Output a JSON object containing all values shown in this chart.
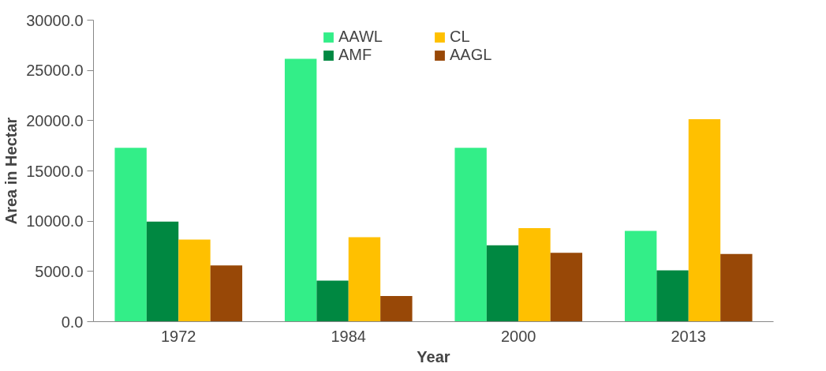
{
  "chart_data": {
    "type": "bar",
    "xlabel": "Year",
    "ylabel": "Area in Hectar",
    "categories": [
      "1972",
      "1984",
      "2000",
      "2013"
    ],
    "series": [
      {
        "name": "AAWL",
        "color": "#33ee88",
        "values": [
          17300,
          26150,
          17300,
          9040
        ]
      },
      {
        "name": "AMF",
        "color": "#008841",
        "values": [
          9950,
          4080,
          7600,
          5100
        ]
      },
      {
        "name": "CL",
        "color": "#ffc000",
        "values": [
          8170,
          8400,
          9300,
          20150
        ]
      },
      {
        "name": "AAGL",
        "color": "#984807",
        "values": [
          5600,
          2550,
          6850,
          6730
        ]
      }
    ],
    "ylim": [
      0,
      30000
    ],
    "yticks": [
      {
        "value": 0,
        "label": "0.0"
      },
      {
        "value": 5000,
        "label": "5000.0"
      },
      {
        "value": 10000,
        "label": "10000.0"
      },
      {
        "value": 15000,
        "label": "15000.0"
      },
      {
        "value": 20000,
        "label": "20000.0"
      },
      {
        "value": 25000,
        "label": "25000.0"
      },
      {
        "value": 30000,
        "label": "30000.0"
      }
    ],
    "grid": false,
    "legend": "top"
  }
}
